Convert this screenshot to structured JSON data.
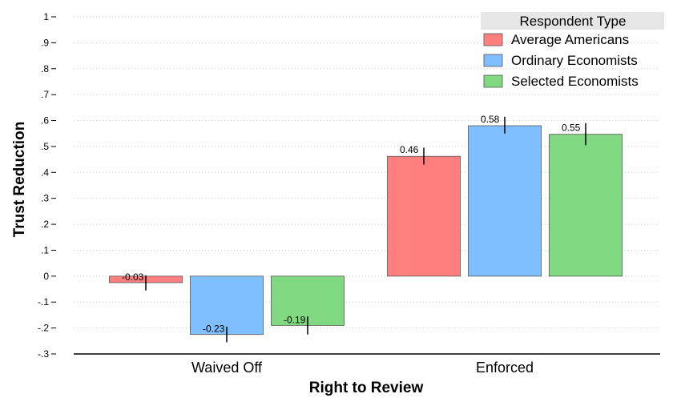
{
  "chart_data": {
    "type": "bar",
    "xlabel": "Right to Review",
    "ylabel": "Trust Reduction",
    "ylim": [
      -0.3,
      1.0
    ],
    "yticks": [
      1,
      0.9,
      0.8,
      0.7,
      0.6,
      0.5,
      0.4,
      0.3,
      0.2,
      0.1,
      0,
      -0.1,
      -0.2,
      -0.3
    ],
    "ytick_labels": [
      "1",
      ".9",
      ".8",
      ".7",
      ".6",
      ".5",
      ".4",
      ".3",
      ".2",
      ".1",
      "0",
      "-.1",
      "-.2",
      "-.3"
    ],
    "grid": true,
    "categories": [
      "Waived Off",
      "Enforced"
    ],
    "legend": {
      "title": "Respondent Type",
      "placement": "top-right"
    },
    "series": [
      {
        "name": "Average Americans",
        "color": "#ff7f7f",
        "values": [
          -0.025,
          0.462
        ],
        "labels": [
          "-0.03",
          "0.46"
        ],
        "ci_low": [
          -0.055,
          0.43
        ],
        "ci_high": [
          0.003,
          0.495
        ]
      },
      {
        "name": "Ordinary Economists",
        "color": "#80bfff",
        "values": [
          -0.225,
          0.58
        ],
        "labels": [
          "-0.23",
          "0.58"
        ],
        "ci_low": [
          -0.255,
          0.55
        ],
        "ci_high": [
          -0.195,
          0.615
        ]
      },
      {
        "name": "Selected Economists",
        "color": "#80d980",
        "values": [
          -0.19,
          0.547
        ],
        "labels": [
          "-0.19",
          "0.55"
        ],
        "ci_low": [
          -0.225,
          0.505
        ],
        "ci_high": [
          -0.155,
          0.59
        ]
      }
    ]
  }
}
